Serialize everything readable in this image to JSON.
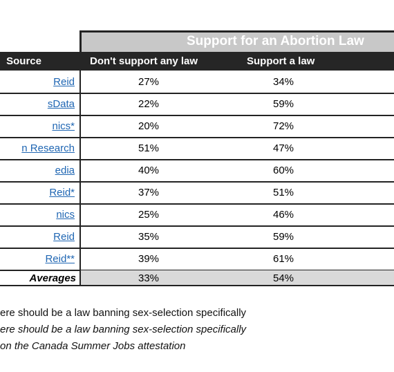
{
  "table": {
    "group_header": "Support for an Abortion Law",
    "columns": [
      "Source",
      "Don't support any law",
      "Support a law"
    ],
    "rows": [
      [
        "Reid",
        "27%",
        "34%"
      ],
      [
        "sData",
        "22%",
        "59%"
      ],
      [
        "nics*",
        "20%",
        "72%"
      ],
      [
        "n Research",
        "51%",
        "47%"
      ],
      [
        "edia",
        "40%",
        "60%"
      ],
      [
        " Reid*",
        "37%",
        "51%"
      ],
      [
        "nics",
        "25%",
        "46%"
      ],
      [
        " Reid",
        "35%",
        "59%"
      ],
      [
        " Reid**",
        "39%",
        "61%"
      ]
    ],
    "averages": [
      "Averages",
      "33%",
      "54%"
    ]
  },
  "notes": [
    "ere should be a law banning sex-selection specifically",
    "ere should be a law banning sex-selection specifically",
    "on the Canada Summer Jobs attestation"
  ]
}
